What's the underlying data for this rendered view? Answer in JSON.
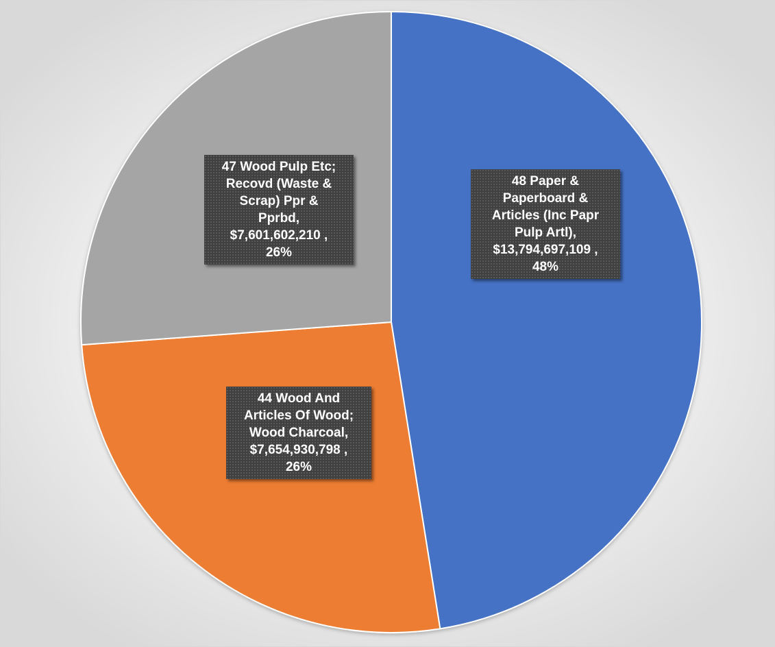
{
  "chart_data": {
    "type": "pie",
    "title": "",
    "categories": [
      "48 Paper & Paperboard & Articles (Inc Papr Pulp Artl)",
      "44 Wood And Articles Of Wood; Wood Charcoal",
      "47 Wood Pulp Etc; Recovd (Waste & Scrap) Ppr & Pprbd"
    ],
    "values": [
      13794697109,
      7654930798,
      7601602210
    ],
    "colors": [
      "#4472c4",
      "#ed7d31",
      "#a5a5a5"
    ],
    "start_angle_deg": 0,
    "direction": "clockwise",
    "legend": "none",
    "labels": [
      {
        "lines": [
          "48 Paper &",
          "Paperboard &",
          "Articles (Inc Papr",
          "Pulp Artl),",
          "$13,794,697,109 ,",
          "48%"
        ]
      },
      {
        "lines": [
          "44 Wood And",
          "Articles Of Wood;",
          "Wood Charcoal,",
          "$7,654,930,798 ,",
          "26%"
        ]
      },
      {
        "lines": [
          "47 Wood Pulp Etc;",
          "Recovd (Waste &",
          "Scrap) Ppr &",
          "Pprbd,",
          "$7,601,602,210 ,",
          "26%"
        ]
      }
    ]
  }
}
